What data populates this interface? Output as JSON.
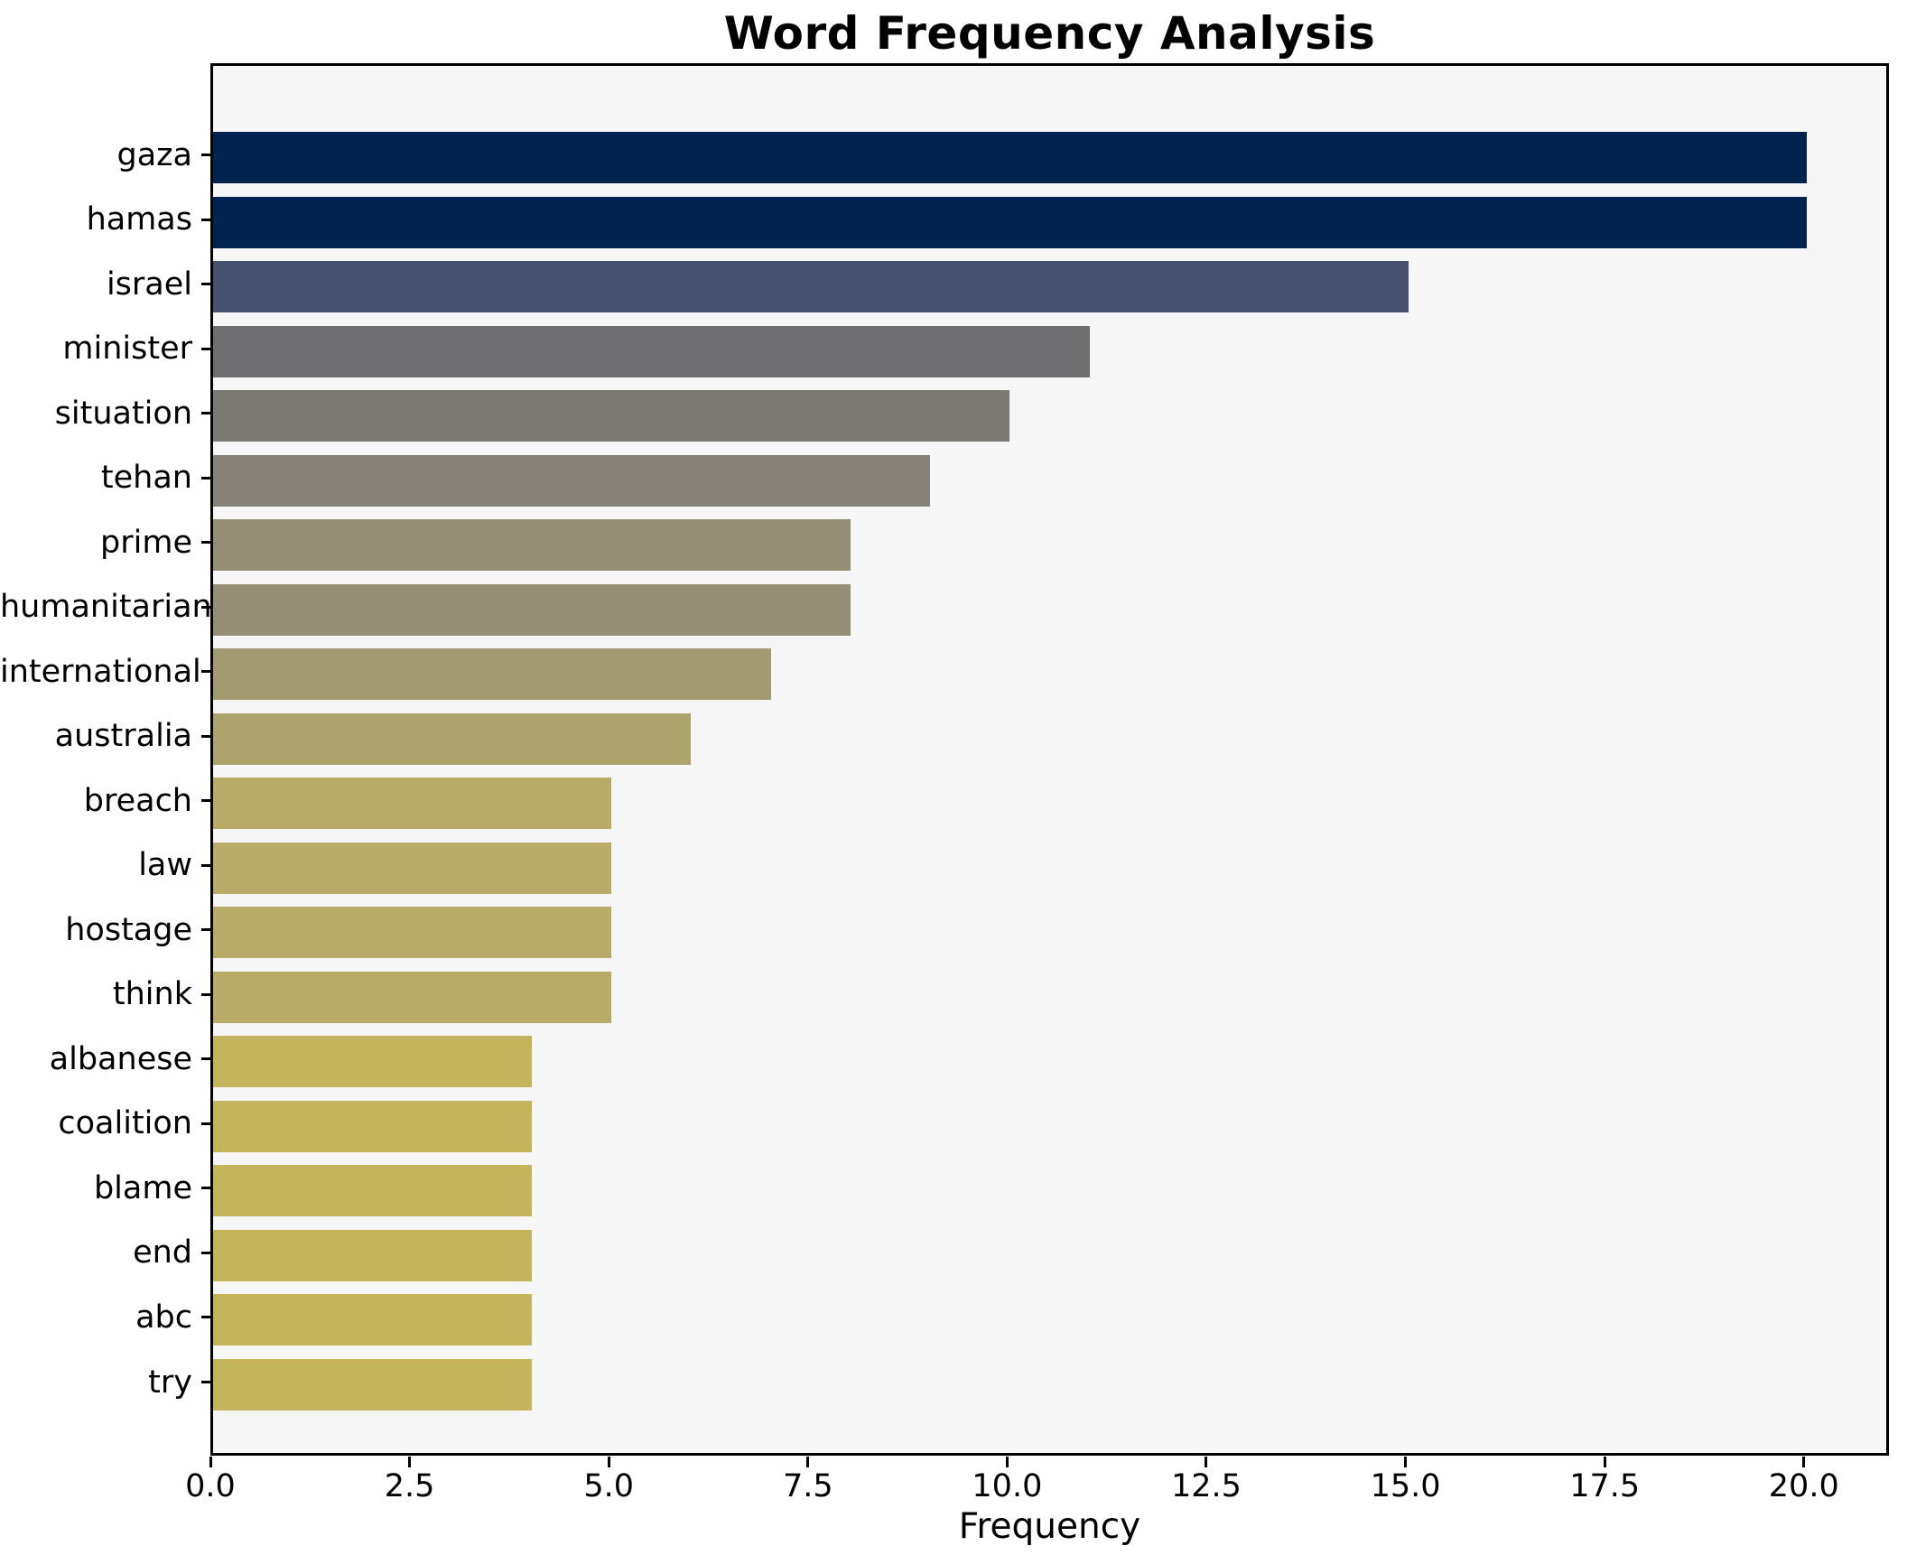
{
  "chart_data": {
    "type": "bar",
    "orientation": "horizontal",
    "title": "Word Frequency Analysis",
    "xlabel": "Frequency",
    "ylabel": "",
    "categories": [
      "gaza",
      "hamas",
      "israel",
      "minister",
      "situation",
      "tehan",
      "prime",
      "humanitarian",
      "international",
      "australia",
      "breach",
      "law",
      "hostage",
      "think",
      "albanese",
      "coalition",
      "blame",
      "end",
      "abc",
      "try"
    ],
    "values": [
      20,
      20,
      15,
      11,
      10,
      9,
      8,
      8,
      7,
      6,
      5,
      5,
      5,
      5,
      4,
      4,
      4,
      4,
      4,
      4
    ],
    "bar_colors": [
      "#00224e",
      "#00224e",
      "#45516f",
      "#6e6e71",
      "#7a7a72",
      "#868278",
      "#948e74",
      "#948e74",
      "#a29a71",
      "#ada46d",
      "#b7ab67",
      "#b7ab67",
      "#b7ab67",
      "#b7ab67",
      "#c5b45e",
      "#c5b45e",
      "#c5b45e",
      "#c5b45e",
      "#c5b45e",
      "#c5b45e"
    ],
    "xlim": [
      0,
      21
    ],
    "x_ticks": [
      0,
      2.5,
      5,
      7.5,
      10,
      12.5,
      15,
      17.5,
      20
    ],
    "x_tick_labels": [
      "0.0",
      "2.5",
      "5.0",
      "7.5",
      "10.0",
      "12.5",
      "15.0",
      "17.5",
      "20.0"
    ],
    "grid": false,
    "plot_background": "#f7f6f6",
    "figure_background": "#ffffff",
    "tick_color": "#000000",
    "text_color": "#000000"
  }
}
